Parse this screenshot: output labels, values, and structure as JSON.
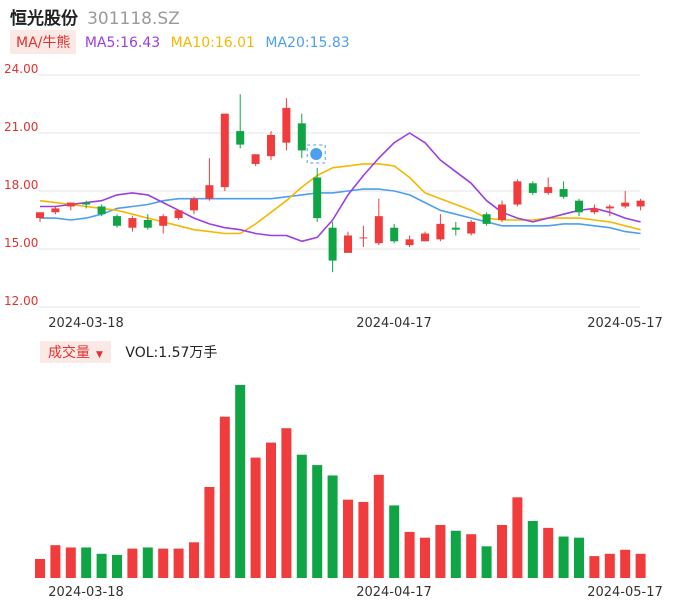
{
  "header": {
    "stock_name": "恒光股份",
    "stock_code": "301118.SZ"
  },
  "ma_bar": {
    "toggle_label": "MA/牛熊",
    "ma5": "MA5:16.43",
    "ma10": "MA10:16.01",
    "ma20": "MA20:15.83"
  },
  "volume_bar": {
    "toggle_label": "成交量",
    "value_text": "VOL:1.57万手"
  },
  "colors": {
    "up": "#f03c3c",
    "down": "#0fa545",
    "ma5": "#9b3fe0",
    "ma10": "#f5b800",
    "ma20": "#4d9ff0",
    "axis_text": "#e0322f",
    "grid": "#e6e6e6"
  },
  "chart_data": {
    "type": "candlestick",
    "y_ticks": [
      "24.00",
      "21.00",
      "18.00",
      "15.00",
      "12.00"
    ],
    "ylim": [
      12,
      24
    ],
    "date_labels": [
      "2024-03-18",
      "2024-04-17",
      "2024-05-17"
    ],
    "date_label_indices": [
      0,
      20,
      35
    ],
    "badge_icon": "shield-badge-icon",
    "candles": [
      {
        "o": 16.6,
        "h": 16.9,
        "l": 16.4,
        "c": 16.9,
        "vol": 0.33
      },
      {
        "o": 16.9,
        "h": 17.2,
        "l": 16.8,
        "c": 17.1,
        "vol": 0.57
      },
      {
        "o": 17.2,
        "h": 17.4,
        "l": 17.0,
        "c": 17.4,
        "vol": 0.53
      },
      {
        "o": 17.4,
        "h": 17.5,
        "l": 17.1,
        "c": 17.3,
        "vol": 0.53
      },
      {
        "o": 17.2,
        "h": 17.3,
        "l": 16.7,
        "c": 16.8,
        "vol": 0.42
      },
      {
        "o": 16.7,
        "h": 16.8,
        "l": 16.1,
        "c": 16.2,
        "vol": 0.4
      },
      {
        "o": 16.1,
        "h": 16.7,
        "l": 15.9,
        "c": 16.6,
        "vol": 0.51
      },
      {
        "o": 16.5,
        "h": 16.8,
        "l": 16.0,
        "c": 16.1,
        "vol": 0.53
      },
      {
        "o": 16.2,
        "h": 16.8,
        "l": 15.8,
        "c": 16.7,
        "vol": 0.51
      },
      {
        "o": 16.6,
        "h": 17.0,
        "l": 16.5,
        "c": 17.0,
        "vol": 0.51
      },
      {
        "o": 17.0,
        "h": 17.7,
        "l": 16.8,
        "c": 17.6,
        "vol": 0.62
      },
      {
        "o": 17.6,
        "h": 19.7,
        "l": 17.5,
        "c": 18.3,
        "vol": 1.58
      },
      {
        "o": 18.2,
        "h": 22.0,
        "l": 18.0,
        "c": 22.0,
        "vol": 2.8
      },
      {
        "o": 21.1,
        "h": 23.0,
        "l": 20.2,
        "c": 20.4,
        "vol": 3.35
      },
      {
        "o": 19.4,
        "h": 19.9,
        "l": 19.3,
        "c": 19.9,
        "vol": 2.09
      },
      {
        "o": 19.8,
        "h": 21.1,
        "l": 19.6,
        "c": 20.9,
        "vol": 2.35
      },
      {
        "o": 20.5,
        "h": 22.8,
        "l": 20.1,
        "c": 22.3,
        "vol": 2.6
      },
      {
        "o": 21.5,
        "h": 22.0,
        "l": 19.7,
        "c": 20.1,
        "vol": 2.14
      },
      {
        "o": 18.7,
        "h": 19.2,
        "l": 16.4,
        "c": 16.6,
        "vol": 1.96
      },
      {
        "o": 16.1,
        "h": 16.4,
        "l": 13.8,
        "c": 14.4,
        "vol": 1.78
      },
      {
        "o": 14.8,
        "h": 15.9,
        "l": 14.8,
        "c": 15.7,
        "vol": 1.36
      },
      {
        "o": 15.6,
        "h": 16.2,
        "l": 15.1,
        "c": 15.6,
        "vol": 1.32
      },
      {
        "o": 15.3,
        "h": 17.6,
        "l": 15.2,
        "c": 16.7,
        "vol": 1.79
      },
      {
        "o": 16.1,
        "h": 16.3,
        "l": 15.3,
        "c": 15.4,
        "vol": 1.26
      },
      {
        "o": 15.2,
        "h": 15.7,
        "l": 15.1,
        "c": 15.5,
        "vol": 0.8
      },
      {
        "o": 15.4,
        "h": 15.9,
        "l": 15.4,
        "c": 15.8,
        "vol": 0.7
      },
      {
        "o": 15.5,
        "h": 16.8,
        "l": 15.4,
        "c": 16.3,
        "vol": 0.92
      },
      {
        "o": 16.1,
        "h": 16.4,
        "l": 15.7,
        "c": 16.0,
        "vol": 0.82
      },
      {
        "o": 15.8,
        "h": 16.5,
        "l": 15.7,
        "c": 16.4,
        "vol": 0.76
      },
      {
        "o": 16.8,
        "h": 16.9,
        "l": 16.2,
        "c": 16.3,
        "vol": 0.55
      },
      {
        "o": 16.5,
        "h": 17.5,
        "l": 16.4,
        "c": 17.3,
        "vol": 0.92
      },
      {
        "o": 17.3,
        "h": 18.6,
        "l": 17.2,
        "c": 18.5,
        "vol": 1.4
      },
      {
        "o": 18.4,
        "h": 18.5,
        "l": 17.8,
        "c": 17.9,
        "vol": 0.99
      },
      {
        "o": 17.9,
        "h": 18.7,
        "l": 17.8,
        "c": 18.2,
        "vol": 0.87
      },
      {
        "o": 18.1,
        "h": 18.5,
        "l": 17.6,
        "c": 17.7,
        "vol": 0.72
      },
      {
        "o": 17.5,
        "h": 17.6,
        "l": 16.7,
        "c": 16.9,
        "vol": 0.7
      },
      {
        "o": 16.9,
        "h": 17.3,
        "l": 16.8,
        "c": 17.1,
        "vol": 0.38
      },
      {
        "o": 17.1,
        "h": 17.3,
        "l": 16.7,
        "c": 17.2,
        "vol": 0.42
      },
      {
        "o": 17.2,
        "h": 18.0,
        "l": 17.1,
        "c": 17.4,
        "vol": 0.49
      },
      {
        "o": 17.2,
        "h": 17.6,
        "l": 17.0,
        "c": 17.5,
        "vol": 0.42
      }
    ],
    "ma5": [
      17.2,
      17.2,
      17.3,
      17.4,
      17.5,
      17.8,
      17.9,
      17.8,
      17.4,
      17.0,
      16.6,
      16.3,
      16.1,
      16.0,
      15.8,
      15.7,
      15.7,
      15.4,
      15.6,
      16.5,
      17.8,
      18.8,
      19.7,
      20.5,
      21.0,
      20.5,
      19.6,
      19.0,
      18.4,
      17.5,
      16.9,
      16.6,
      16.4,
      16.6,
      16.8,
      17.0,
      17.1,
      16.9,
      16.6,
      16.4
    ],
    "ma10": [
      17.5,
      17.4,
      17.3,
      17.2,
      17.1,
      17.0,
      16.8,
      16.6,
      16.4,
      16.2,
      16.0,
      15.9,
      15.8,
      15.8,
      16.3,
      16.9,
      17.5,
      18.2,
      18.8,
      19.2,
      19.3,
      19.4,
      19.4,
      19.3,
      18.7,
      17.9,
      17.6,
      17.3,
      17.0,
      16.6,
      16.5,
      16.5,
      16.5,
      16.6,
      16.6,
      16.6,
      16.5,
      16.4,
      16.2,
      16.0
    ],
    "ma20": [
      16.6,
      16.6,
      16.5,
      16.6,
      16.8,
      17.1,
      17.2,
      17.3,
      17.5,
      17.6,
      17.6,
      17.6,
      17.6,
      17.6,
      17.6,
      17.6,
      17.7,
      17.8,
      17.9,
      17.9,
      18.0,
      18.1,
      18.1,
      18.0,
      17.8,
      17.4,
      17.0,
      16.8,
      16.6,
      16.4,
      16.2,
      16.2,
      16.2,
      16.2,
      16.3,
      16.3,
      16.2,
      16.1,
      15.9,
      15.8
    ],
    "vol_max": 3.35
  }
}
